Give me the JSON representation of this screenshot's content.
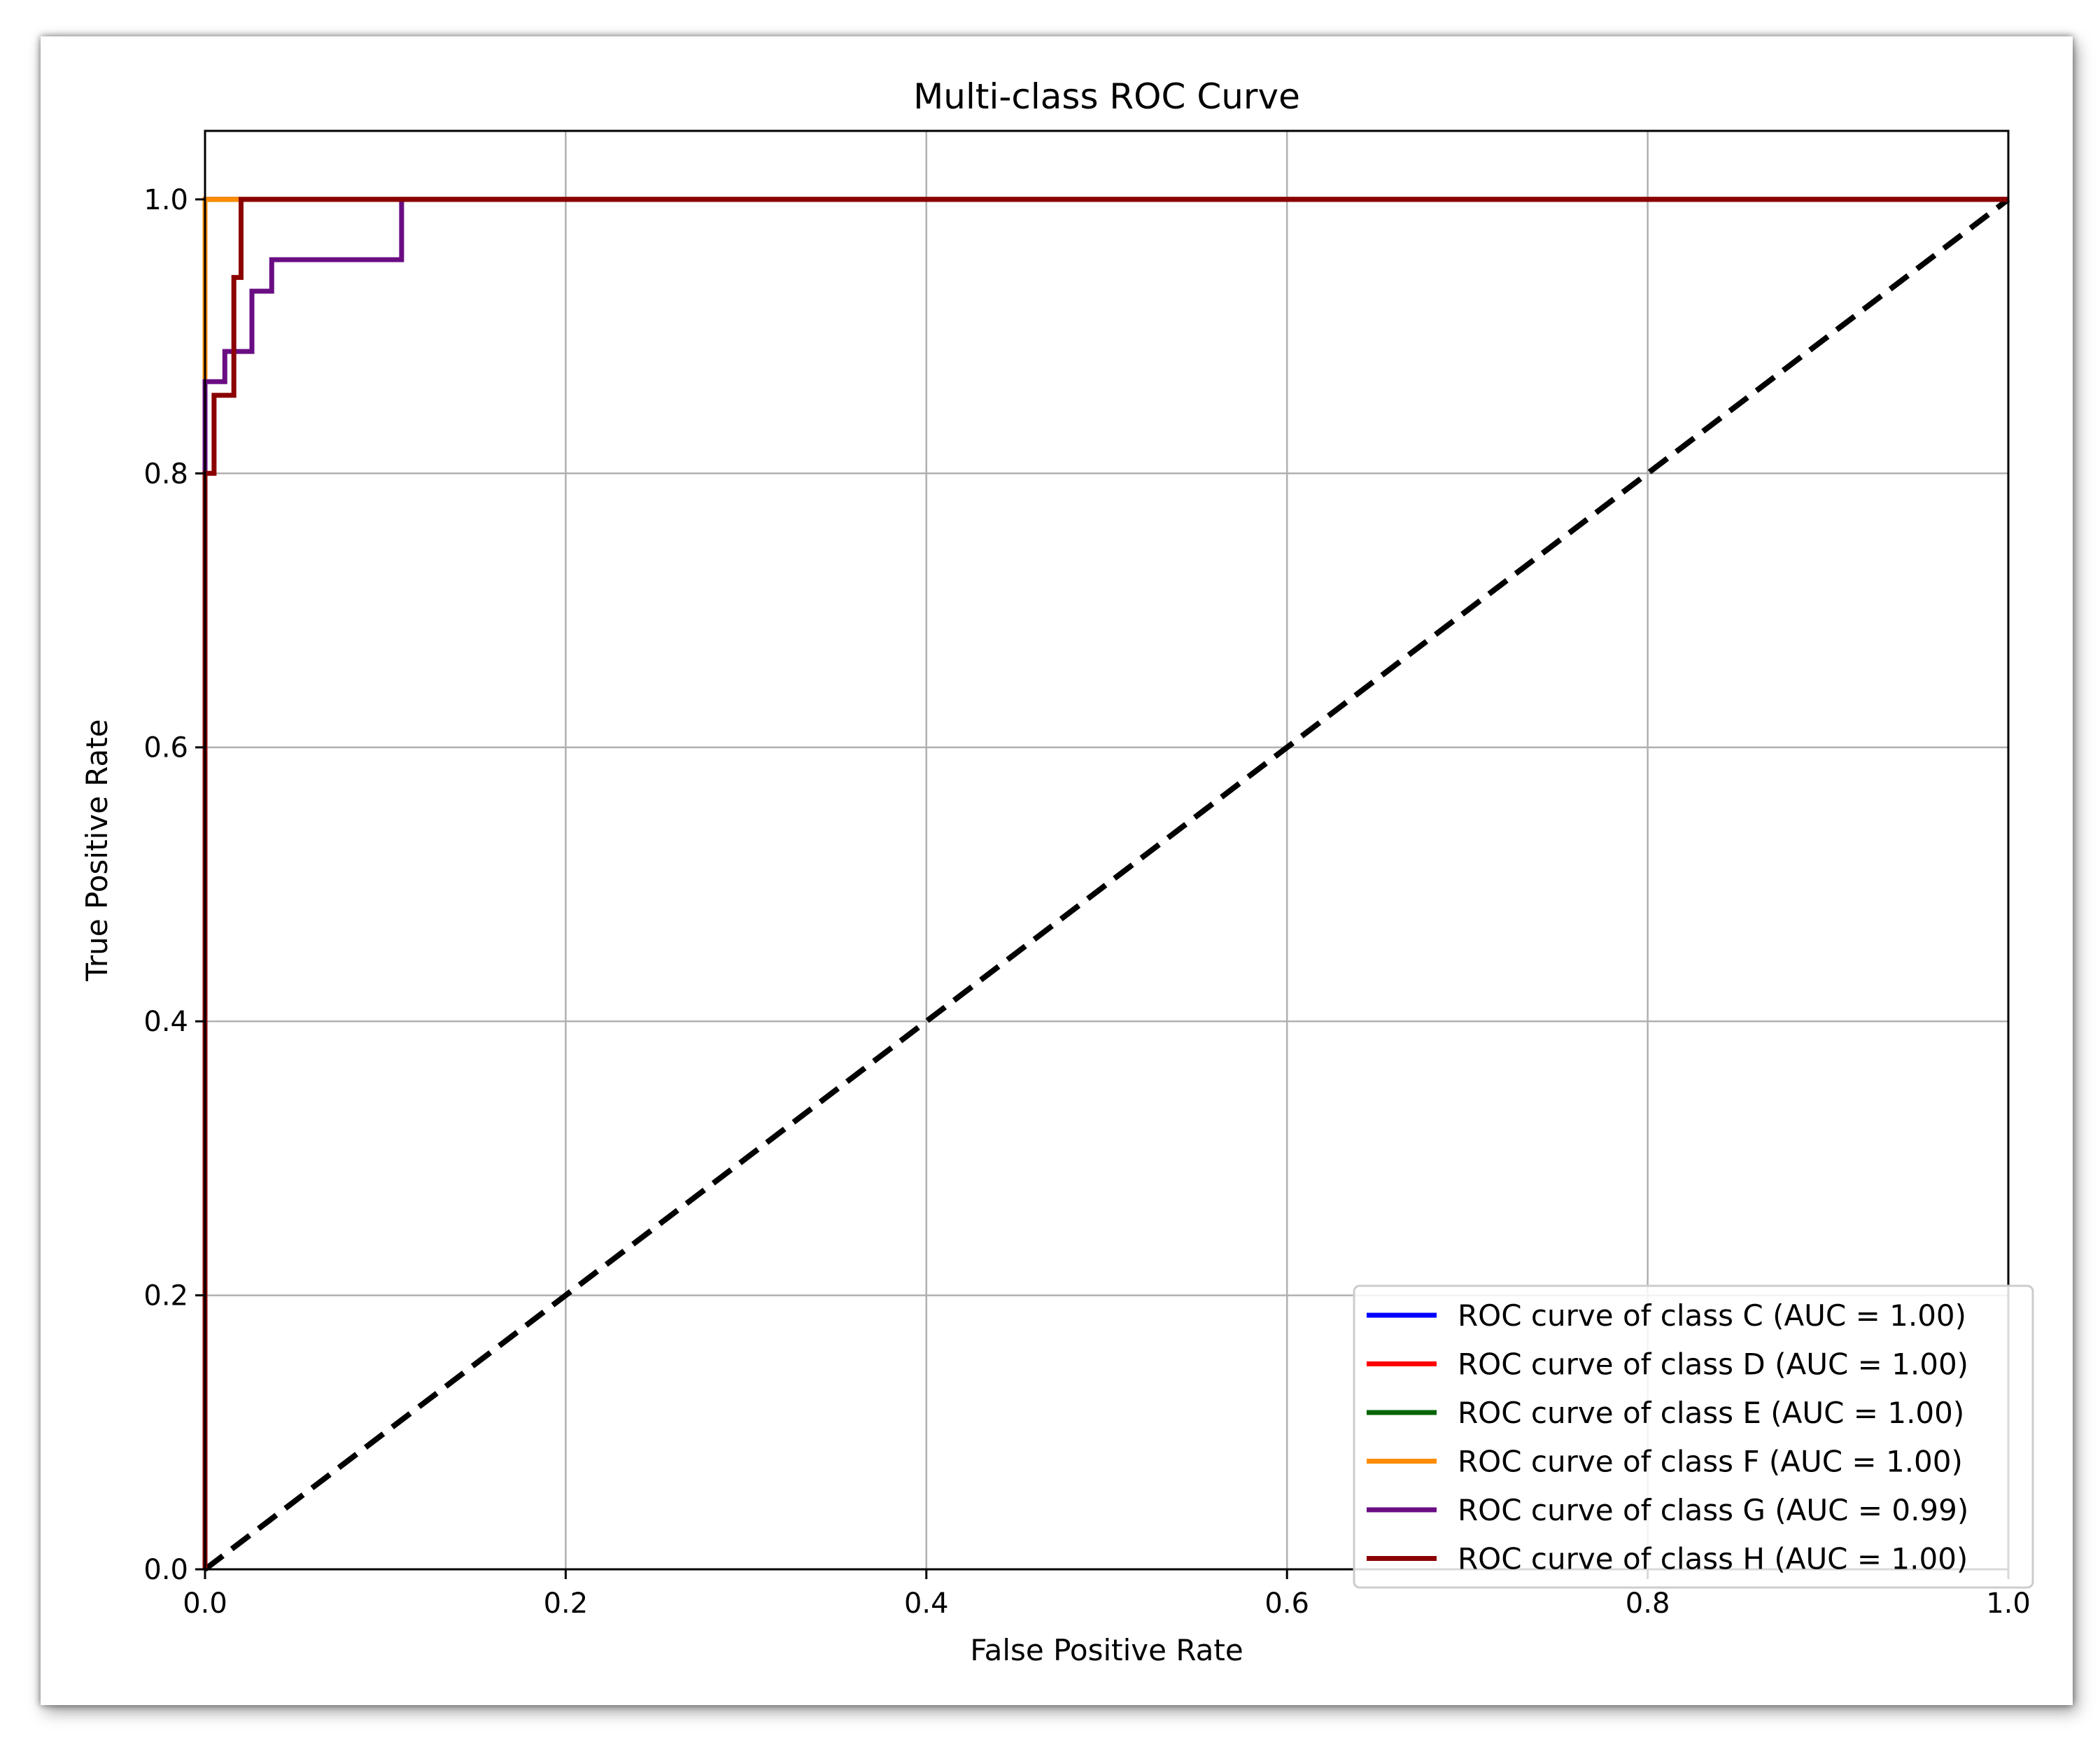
{
  "chart_data": {
    "type": "line",
    "title": "Multi-class ROC Curve",
    "xlabel": "False Positive Rate",
    "ylabel": "True Positive Rate",
    "xlim": [
      0.0,
      1.0
    ],
    "ylim": [
      0.0,
      1.05
    ],
    "xticks": [
      0.0,
      0.2,
      0.4,
      0.6,
      0.8,
      1.0
    ],
    "yticks": [
      0.0,
      0.2,
      0.4,
      0.6,
      0.8,
      1.0
    ],
    "xtick_labels": [
      "0.0",
      "0.2",
      "0.4",
      "0.6",
      "0.8",
      "1.0"
    ],
    "ytick_labels": [
      "0.0",
      "0.2",
      "0.4",
      "0.6",
      "0.8",
      "1.0"
    ],
    "grid": true,
    "legend_position": "lower-right",
    "series": [
      {
        "name": "ROC curve of class C (AUC = 1.00)",
        "color": "#0000ff",
        "x": [
          0.0,
          0.0,
          1.0
        ],
        "y": [
          0.0,
          1.0,
          1.0
        ]
      },
      {
        "name": "ROC curve of class D (AUC = 1.00)",
        "color": "#ff0000",
        "x": [
          0.0,
          0.0,
          1.0
        ],
        "y": [
          0.0,
          1.0,
          1.0
        ]
      },
      {
        "name": "ROC curve of class E (AUC = 1.00)",
        "color": "#006400",
        "x": [
          0.0,
          0.0,
          1.0
        ],
        "y": [
          0.0,
          1.0,
          1.0
        ]
      },
      {
        "name": "ROC curve of class F (AUC = 1.00)",
        "color": "#ff8c00",
        "x": [
          0.0,
          0.0,
          1.0
        ],
        "y": [
          0.0,
          1.0,
          1.0
        ]
      },
      {
        "name": "ROC curve of class G (AUC = 0.99)",
        "color": "#6a0d83",
        "x": [
          0.0,
          0.0,
          0.011,
          0.011,
          0.026,
          0.026,
          0.037,
          0.037,
          0.109,
          0.109,
          1.0
        ],
        "y": [
          0.0,
          0.867,
          0.867,
          0.889,
          0.889,
          0.933,
          0.933,
          0.956,
          0.956,
          1.0,
          1.0
        ]
      },
      {
        "name": "ROC curve of class H (AUC = 1.00)",
        "color": "#8b0000",
        "x": [
          0.0,
          0.0,
          0.005,
          0.005,
          0.016,
          0.016,
          0.02,
          0.02,
          1.0
        ],
        "y": [
          0.0,
          0.8,
          0.8,
          0.857,
          0.857,
          0.943,
          0.943,
          1.0,
          1.0
        ]
      }
    ],
    "reference_line": {
      "x": [
        0.0,
        1.0
      ],
      "y": [
        0.0,
        1.0
      ],
      "color": "#000000",
      "style": "dashed"
    }
  }
}
